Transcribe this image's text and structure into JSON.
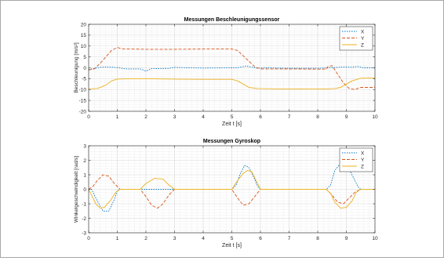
{
  "figure": {
    "border_color": "#a8a8a8"
  },
  "chart_data": [
    {
      "type": "line",
      "title": "Messungen Beschleunigungssensor",
      "xlabel": "Zeit t [s]",
      "ylabel": "Beschleunigung [m/s²]",
      "xlim": [
        0,
        10
      ],
      "ylim": [
        -20,
        20
      ],
      "xticks": [
        0,
        1,
        2,
        3,
        4,
        5,
        6,
        7,
        8,
        9,
        10
      ],
      "yticks": [
        -20,
        -15,
        -10,
        -5,
        0,
        5,
        10,
        15,
        20
      ],
      "grid": true,
      "minor_grid": true,
      "legend": "top-right",
      "series": [
        {
          "name": "X",
          "color": "#0072BD",
          "style": "dotted",
          "points": [
            [
              0,
              -0.8
            ],
            [
              0.3,
              0
            ],
            [
              0.5,
              0.4
            ],
            [
              0.8,
              0.3
            ],
            [
              1.0,
              0.1
            ],
            [
              1.3,
              -0.5
            ],
            [
              1.8,
              -0.5
            ],
            [
              2.0,
              -1.5
            ],
            [
              2.2,
              -0.4
            ],
            [
              2.8,
              -0.3
            ],
            [
              3.0,
              0.2
            ],
            [
              3.5,
              0
            ],
            [
              4.0,
              -0.1
            ],
            [
              5.0,
              0
            ],
            [
              5.2,
              0.1
            ],
            [
              5.4,
              0.5
            ],
            [
              5.5,
              0.8
            ],
            [
              5.7,
              0.3
            ],
            [
              5.9,
              -0.2
            ],
            [
              6.2,
              0
            ],
            [
              7.0,
              -0.2
            ],
            [
              8.0,
              -0.2
            ],
            [
              8.4,
              0
            ],
            [
              8.7,
              0.2
            ],
            [
              8.9,
              0.4
            ],
            [
              9.2,
              0.3
            ],
            [
              9.4,
              0.6
            ],
            [
              9.6,
              0
            ],
            [
              10,
              0
            ]
          ]
        },
        {
          "name": "Y",
          "color": "#D95319",
          "style": "dashed",
          "points": [
            [
              0,
              -1
            ],
            [
              0.2,
              -0.5
            ],
            [
              0.4,
              2
            ],
            [
              0.6,
              5
            ],
            [
              0.8,
              8
            ],
            [
              1.0,
              9.3
            ],
            [
              1.2,
              8.7
            ],
            [
              2,
              8.5
            ],
            [
              3,
              8.5
            ],
            [
              4,
              8.6
            ],
            [
              5.0,
              8.6
            ],
            [
              5.2,
              8.0
            ],
            [
              5.4,
              5.5
            ],
            [
              5.6,
              3
            ],
            [
              5.8,
              0.5
            ],
            [
              6.0,
              -0.5
            ],
            [
              7,
              -0.5
            ],
            [
              8,
              -0.6
            ],
            [
              8.3,
              -0.6
            ],
            [
              8.35,
              0.5
            ],
            [
              8.5,
              1
            ],
            [
              8.7,
              -3
            ],
            [
              8.9,
              -7
            ],
            [
              9.1,
              -9.5
            ],
            [
              9.3,
              -10
            ],
            [
              9.5,
              -9
            ],
            [
              9.7,
              -9
            ],
            [
              10,
              -9
            ]
          ]
        },
        {
          "name": "Z",
          "color": "#EDB120",
          "style": "solid",
          "points": [
            [
              0,
              -9.8
            ],
            [
              0.3,
              -9.5
            ],
            [
              0.6,
              -8
            ],
            [
              0.8,
              -6
            ],
            [
              1.0,
              -5.2
            ],
            [
              1.5,
              -5
            ],
            [
              2,
              -5
            ],
            [
              3,
              -5.2
            ],
            [
              4,
              -5.3
            ],
            [
              5.0,
              -5.3
            ],
            [
              5.2,
              -6
            ],
            [
              5.4,
              -7.5
            ],
            [
              5.6,
              -9
            ],
            [
              5.9,
              -9.6
            ],
            [
              6.5,
              -9.7
            ],
            [
              7.5,
              -9.7
            ],
            [
              8.3,
              -9.7
            ],
            [
              8.6,
              -9.6
            ],
            [
              8.8,
              -9
            ],
            [
              9.0,
              -7.5
            ],
            [
              9.2,
              -6
            ],
            [
              9.5,
              -4.8
            ],
            [
              10,
              -4.6
            ]
          ]
        }
      ]
    },
    {
      "type": "line",
      "title": "Messungen Gyroskop",
      "xlabel": "Zeit t [s]",
      "ylabel": "Winkelgeschwindigkeit [rad/s]",
      "xlim": [
        0,
        10
      ],
      "ylim": [
        -3,
        3
      ],
      "xticks": [
        0,
        1,
        2,
        3,
        4,
        5,
        6,
        7,
        8,
        9,
        10
      ],
      "yticks": [
        -3,
        -2,
        -1,
        0,
        1,
        2,
        3
      ],
      "grid": true,
      "minor_grid": true,
      "legend": "top-right",
      "series": [
        {
          "name": "X",
          "color": "#0072BD",
          "style": "dotted",
          "points": [
            [
              0,
              0
            ],
            [
              0.1,
              0
            ],
            [
              0.3,
              -0.8
            ],
            [
              0.5,
              -1.5
            ],
            [
              0.7,
              -1.5
            ],
            [
              0.9,
              -0.7
            ],
            [
              1.0,
              -0.1
            ],
            [
              1.1,
              0
            ],
            [
              5,
              0
            ],
            [
              5.15,
              0.3
            ],
            [
              5.3,
              1.1
            ],
            [
              5.45,
              1.65
            ],
            [
              5.6,
              1.5
            ],
            [
              5.75,
              0.9
            ],
            [
              5.9,
              0.2
            ],
            [
              6.0,
              0
            ],
            [
              8.3,
              0
            ],
            [
              8.45,
              0.3
            ],
            [
              8.6,
              1.3
            ],
            [
              8.8,
              1.8
            ],
            [
              9.0,
              1.75
            ],
            [
              9.2,
              1.0
            ],
            [
              9.4,
              0.2
            ],
            [
              9.5,
              0
            ],
            [
              10,
              0
            ]
          ]
        },
        {
          "name": "Y",
          "color": "#D95319",
          "style": "dashed",
          "points": [
            [
              0,
              0
            ],
            [
              0.15,
              0.2
            ],
            [
              0.3,
              0.6
            ],
            [
              0.5,
              1.0
            ],
            [
              0.7,
              0.9
            ],
            [
              0.9,
              0.4
            ],
            [
              1.1,
              0
            ],
            [
              1.8,
              0
            ],
            [
              2.0,
              -0.5
            ],
            [
              2.2,
              -1.1
            ],
            [
              2.4,
              -1.3
            ],
            [
              2.6,
              -1.0
            ],
            [
              2.8,
              -0.4
            ],
            [
              3.0,
              0
            ],
            [
              5.0,
              0
            ],
            [
              5.2,
              -0.6
            ],
            [
              5.4,
              -1.1
            ],
            [
              5.6,
              -1.0
            ],
            [
              5.8,
              -0.5
            ],
            [
              6.0,
              0
            ],
            [
              8.3,
              0
            ],
            [
              8.5,
              -0.4
            ],
            [
              8.7,
              -0.9
            ],
            [
              8.9,
              -1.0
            ],
            [
              9.1,
              -0.6
            ],
            [
              9.3,
              -0.2
            ],
            [
              9.5,
              0
            ],
            [
              10,
              0
            ]
          ]
        },
        {
          "name": "Z",
          "color": "#EDB120",
          "style": "solid",
          "points": [
            [
              0,
              0
            ],
            [
              0.1,
              -0.4
            ],
            [
              0.25,
              -1.0
            ],
            [
              0.4,
              -1.3
            ],
            [
              0.55,
              -1.25
            ],
            [
              0.75,
              -0.8
            ],
            [
              0.95,
              -0.2
            ],
            [
              1.1,
              0
            ],
            [
              1.8,
              0
            ],
            [
              2.0,
              0.4
            ],
            [
              2.3,
              0.75
            ],
            [
              2.6,
              0.7
            ],
            [
              2.8,
              0.3
            ],
            [
              3.0,
              0
            ],
            [
              5.0,
              0
            ],
            [
              5.2,
              0.6
            ],
            [
              5.4,
              1.1
            ],
            [
              5.55,
              1.3
            ],
            [
              5.7,
              1.2
            ],
            [
              5.85,
              0.6
            ],
            [
              6.0,
              0
            ],
            [
              8.3,
              0
            ],
            [
              8.45,
              -0.3
            ],
            [
              8.6,
              -0.9
            ],
            [
              8.8,
              -1.3
            ],
            [
              9.0,
              -1.25
            ],
            [
              9.2,
              -0.8
            ],
            [
              9.35,
              -0.2
            ],
            [
              9.5,
              0
            ],
            [
              10,
              0
            ]
          ]
        }
      ]
    }
  ]
}
